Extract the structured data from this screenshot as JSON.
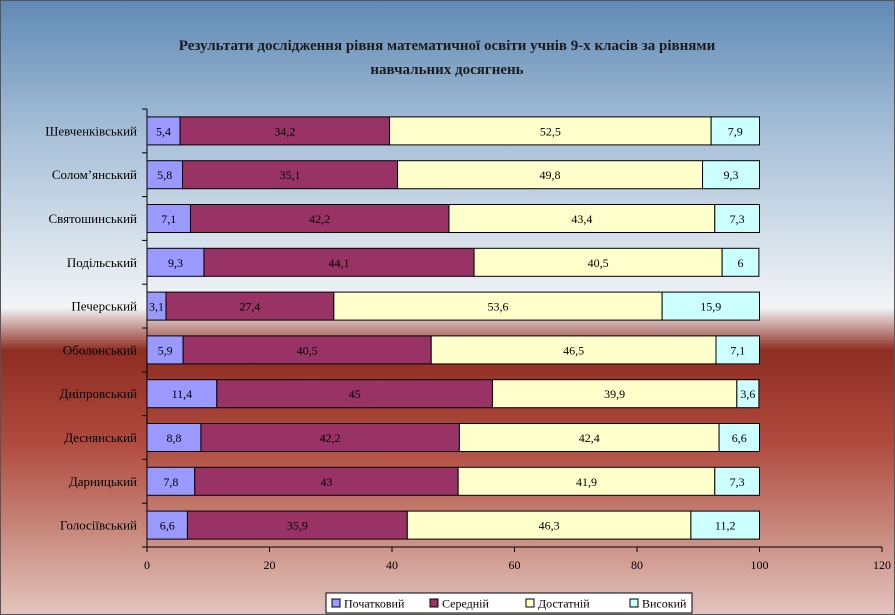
{
  "chart_data": {
    "type": "bar",
    "orientation": "horizontal",
    "stacked": true,
    "title": "Результати дослідження рівня математичної освіти учнів 9-х класів за рівнями навчальних досягнень",
    "title_lines": [
      "Результати дослідження рівня математичної освіти учнів 9-х класів за рівнями",
      "навчальних досягнень"
    ],
    "categories": [
      "Шевченківський",
      "Солом’янський",
      "Святошинський",
      "Подільський",
      "Печерський",
      "Оболонський",
      "Дніпровський",
      "Деснянський",
      "Дарницький",
      "Голосіївський"
    ],
    "series": [
      {
        "name": "Початковий",
        "color": "#9999ff",
        "values": [
          5.4,
          5.8,
          7.1,
          9.3,
          3.1,
          5.9,
          11.4,
          8.8,
          7.8,
          6.6
        ]
      },
      {
        "name": "Середній",
        "color": "#993366",
        "values": [
          34.2,
          35.1,
          42.2,
          44.1,
          27.4,
          40.5,
          45,
          42.2,
          43,
          35.9
        ]
      },
      {
        "name": "Достатній",
        "color": "#ffffcc",
        "values": [
          52.5,
          49.8,
          43.4,
          40.5,
          53.6,
          46.5,
          39.9,
          42.4,
          41.9,
          46.3
        ]
      },
      {
        "name": "Високий",
        "color": "#ccffff",
        "values": [
          7.9,
          9.3,
          7.3,
          6,
          15.9,
          7.1,
          3.6,
          6.6,
          7.3,
          11.2
        ]
      }
    ],
    "xlim": [
      0,
      120
    ],
    "xticks": [
      "0",
      "20",
      "40",
      "60",
      "80",
      "100",
      "120"
    ],
    "grid": false,
    "legend_position": "bottom"
  }
}
